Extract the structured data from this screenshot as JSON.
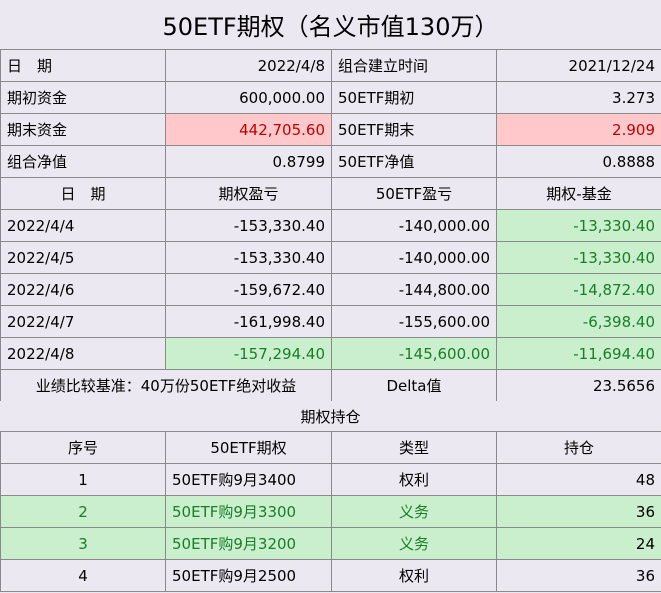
{
  "title": "50ETF期权（名义市值130万）",
  "summary": [
    {
      "l1": "日　期",
      "v1": "2022/4/8",
      "l2": "组合建立时间",
      "v2": "2021/12/24"
    },
    {
      "l1": "期初资金",
      "v1": "600,000.00",
      "l2": "50ETF期初",
      "v2": "3.273"
    },
    {
      "l1": "期末资金",
      "v1": "442,705.60",
      "l2": "50ETF期末",
      "v2": "2.909"
    },
    {
      "l1": "组合净值",
      "v1": "0.8799",
      "l2": "50ETF净值",
      "v2": "0.8888"
    }
  ],
  "pnl": {
    "headers": [
      "日　期",
      "期权盈亏",
      "50ETF盈亏",
      "期权-基金"
    ],
    "rows": [
      [
        "2022/4/4",
        "-153,330.40",
        "-140,000.00",
        "-13,330.40"
      ],
      [
        "2022/4/5",
        "-153,330.40",
        "-140,000.00",
        "-13,330.40"
      ],
      [
        "2022/4/6",
        "-159,672.40",
        "-144,800.00",
        "-14,872.40"
      ],
      [
        "2022/4/7",
        "-161,998.40",
        "-155,600.00",
        "-6,398.40"
      ],
      [
        "2022/4/8",
        "-157,294.40",
        "-145,600.00",
        "-11,694.40"
      ]
    ]
  },
  "benchmark": {
    "label": "业绩比较基准：40万份50ETF绝对收益",
    "delta_label": "Delta值",
    "delta_value": "23.5656"
  },
  "positions_title": "期权持仓",
  "positions": {
    "headers": [
      "序号",
      "50ETF期权",
      "类型",
      "持仓"
    ],
    "rows": [
      [
        "1",
        "50ETF购9月3400",
        "权利",
        "48"
      ],
      [
        "2",
        "50ETF购9月3300",
        "义务",
        "36"
      ],
      [
        "3",
        "50ETF购9月3200",
        "义务",
        "24"
      ],
      [
        "4",
        "50ETF购9月2500",
        "权利",
        "36"
      ]
    ]
  },
  "colors": {
    "background": "#ebe8f2",
    "header": "#d2cce0",
    "highlight_pink": "#ffc9cc",
    "highlight_green": "#c9efcc",
    "text_red": "#c00000",
    "text_green": "#1a7d2a"
  }
}
